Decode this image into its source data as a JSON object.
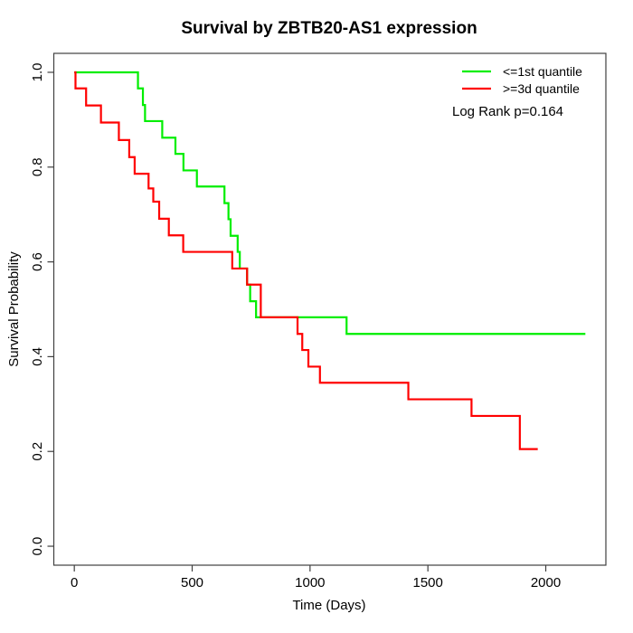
{
  "chart_data": {
    "type": "line",
    "subtype": "kaplan-meier-step-curves",
    "title": "Survival by ZBTB20-AS1 expression",
    "xlabel": "Time (Days)",
    "ylabel": "Survival Probability",
    "xlim": [
      -87,
      2255
    ],
    "ylim": [
      -0.04,
      1.04
    ],
    "x_ticks": [
      0,
      500,
      1000,
      1500,
      2000
    ],
    "y_ticks": [
      0.0,
      0.2,
      0.4,
      0.6,
      0.8,
      1.0
    ],
    "grid": false,
    "legend_position": "top-right",
    "annotation": "Log Rank p=0.164",
    "series": [
      {
        "name": "<=1st quantile",
        "color": "#00ee00",
        "end_day": 2168,
        "steps": [
          [
            0,
            1.0
          ],
          [
            270,
            0.966
          ],
          [
            291,
            0.931
          ],
          [
            300,
            0.897
          ],
          [
            373,
            0.862
          ],
          [
            429,
            0.828
          ],
          [
            463,
            0.793
          ],
          [
            520,
            0.759
          ],
          [
            637,
            0.724
          ],
          [
            654,
            0.69
          ],
          [
            663,
            0.655
          ],
          [
            693,
            0.621
          ],
          [
            702,
            0.586
          ],
          [
            733,
            0.552
          ],
          [
            746,
            0.517
          ],
          [
            771,
            0.483
          ],
          [
            1155,
            0.448
          ]
        ]
      },
      {
        "name": ">=3d quantile",
        "color": "#ff0000",
        "end_day": 1966,
        "steps": [
          [
            0,
            1.0
          ],
          [
            5,
            0.966
          ],
          [
            50,
            0.93
          ],
          [
            113,
            0.894
          ],
          [
            189,
            0.857
          ],
          [
            233,
            0.821
          ],
          [
            256,
            0.786
          ],
          [
            315,
            0.755
          ],
          [
            335,
            0.727
          ],
          [
            360,
            0.691
          ],
          [
            401,
            0.656
          ],
          [
            462,
            0.621
          ],
          [
            670,
            0.586
          ],
          [
            733,
            0.552
          ],
          [
            791,
            0.483
          ],
          [
            947,
            0.448
          ],
          [
            967,
            0.414
          ],
          [
            993,
            0.379
          ],
          [
            1042,
            0.345
          ],
          [
            1417,
            0.31
          ],
          [
            1685,
            0.275
          ],
          [
            1890,
            0.205
          ]
        ]
      }
    ]
  }
}
